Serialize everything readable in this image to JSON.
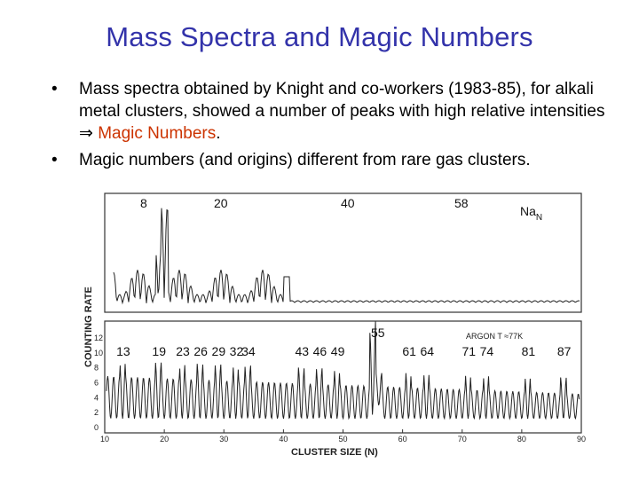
{
  "slide": {
    "title": "Mass Spectra and Magic Numbers",
    "bullets": [
      {
        "text": "Mass spectra obtained by Knight and co-workers (1983-85), for alkali metal clusters, showed a number of peaks with high relative intensities",
        "arrow": "⇒",
        "highlight": "Magic Numbers",
        "tail": "."
      },
      {
        "text": "Magic numbers (and origins) different from rare gas clusters."
      }
    ]
  },
  "figure": {
    "colors": {
      "ink": "#222222",
      "frame": "#333333"
    },
    "ylabel": "COUNTING RATE",
    "xlabel": "CLUSTER SIZE (N)",
    "xticks": [
      "10",
      "20",
      "30",
      "40",
      "50",
      "60",
      "70",
      "80",
      "90"
    ],
    "top_panel": {
      "label": "Na",
      "label_sub": "N",
      "peak_labels": [
        "8",
        "20",
        "40",
        "58"
      ]
    },
    "bottom_panel": {
      "label": "ARGON T ≈77K",
      "yticks": [
        "12",
        "10",
        "8",
        "6",
        "4",
        "2",
        "0"
      ],
      "peak_labels": [
        "13",
        "19",
        "23",
        "26",
        "29",
        "32",
        "34",
        "43",
        "46",
        "49",
        "55",
        "61",
        "64",
        "71",
        "74",
        "81",
        "87"
      ]
    }
  }
}
